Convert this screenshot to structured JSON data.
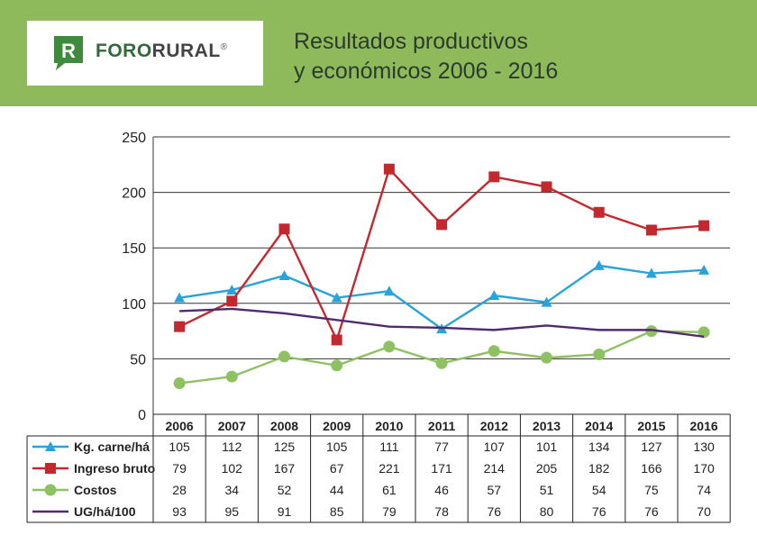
{
  "header": {
    "logo_bold": "FORO",
    "logo_light": "RURAL",
    "logo_reg": "®",
    "logo_letter": "R",
    "title_line1": "Resultados productivos",
    "title_line2": "y económicos 2006 - 2016"
  },
  "colors": {
    "banner": "#8fba5c",
    "logo_green": "#3f8a3d",
    "kg": "#29a3dc",
    "ingreso": "#c3282e",
    "costos": "#8ec161",
    "ug": "#4f2a6e"
  },
  "chart_data": {
    "type": "line",
    "x": [
      "2006",
      "2007",
      "2008",
      "2009",
      "2010",
      "2011",
      "2012",
      "2013",
      "2014",
      "2015",
      "2016"
    ],
    "ylim": [
      0,
      250
    ],
    "yticks": [
      "0",
      "50",
      "100",
      "150",
      "200",
      "250"
    ],
    "grid": true,
    "legend": "table-below",
    "series": [
      {
        "name": "Kg. carne/há",
        "marker": "triangle",
        "color": "#29a3dc",
        "values": [
          105,
          112,
          125,
          105,
          111,
          77,
          107,
          101,
          134,
          127,
          130
        ]
      },
      {
        "name": "Ingreso bruto",
        "marker": "square",
        "color": "#c3282e",
        "values": [
          79,
          102,
          167,
          67,
          221,
          171,
          214,
          205,
          182,
          166,
          170
        ]
      },
      {
        "name": "Costos",
        "marker": "circle",
        "color": "#8ec161",
        "values": [
          28,
          34,
          52,
          44,
          61,
          46,
          57,
          51,
          54,
          75,
          74
        ]
      },
      {
        "name": "UG/há/100",
        "marker": "none",
        "color": "#4f2a6e",
        "values": [
          93,
          95,
          91,
          85,
          79,
          78,
          76,
          80,
          76,
          76,
          70
        ]
      }
    ]
  }
}
